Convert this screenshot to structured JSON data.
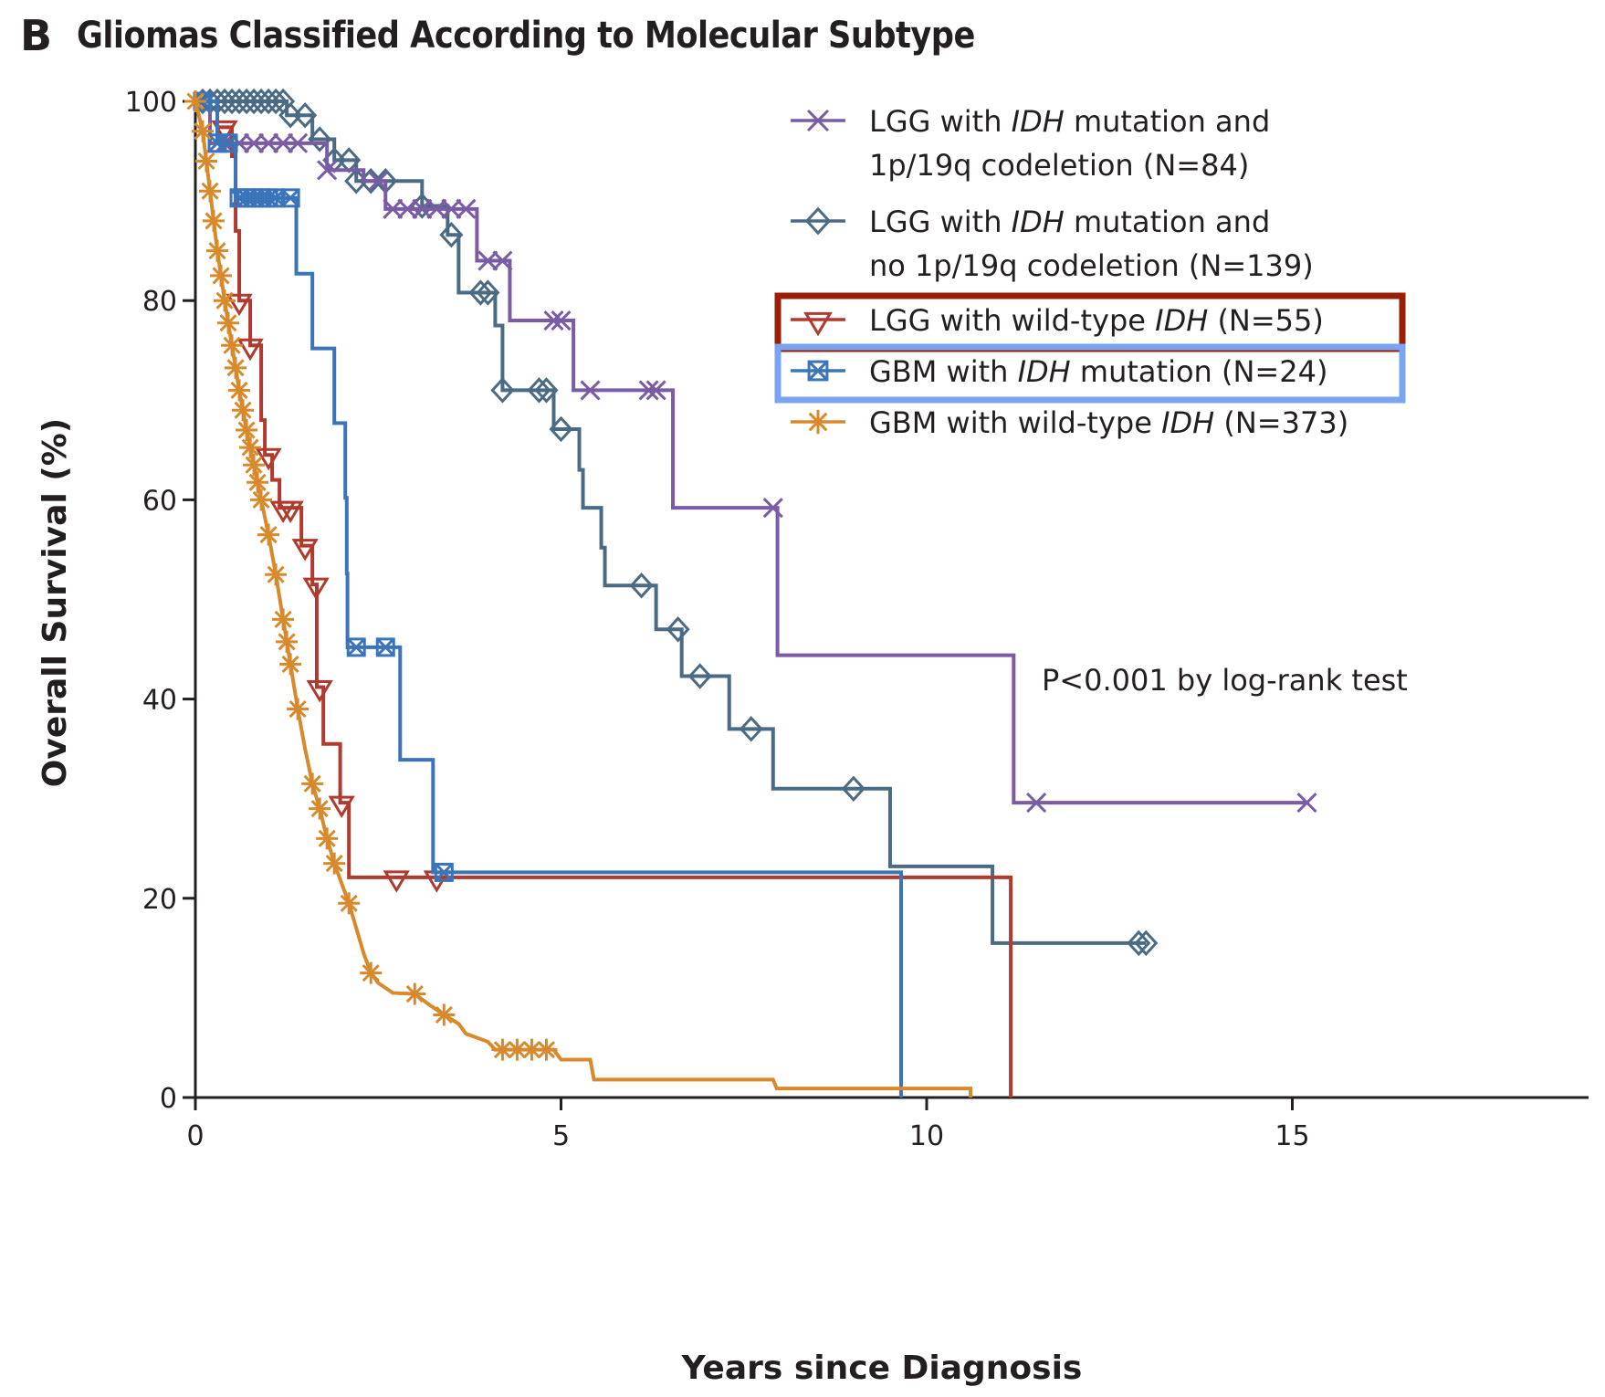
{
  "panel_letter": "B",
  "chart_data": {
    "type": "line",
    "subtype": "kaplan-meier step",
    "title": "Gliomas Classified According to Molecular Subtype",
    "xlabel": "Years since Diagnosis",
    "ylabel": "Overall Survival (%)",
    "xlim": [
      0,
      16.5
    ],
    "ylim": [
      0,
      100
    ],
    "xticks": [
      0,
      5,
      10,
      15
    ],
    "xtick_labels": [
      "0",
      "5",
      "10",
      "15"
    ],
    "yticks": [
      0,
      20,
      40,
      60,
      80,
      100
    ],
    "ytick_labels": [
      "0",
      "20",
      "40",
      "60",
      "80",
      "100"
    ],
    "grid": false,
    "legend_position": "top-right",
    "annotation": "P<0.001 by log-rank test",
    "series": [
      {
        "name": "LGG with IDH mutation and 1p/19q codeletion (N=84)",
        "legend_lines": [
          [
            "LGG with ",
            "IDH",
            " mutation and"
          ],
          [
            "1p/19q codeletion (N=84)"
          ]
        ],
        "color": "#7a5ba6",
        "marker": "x",
        "highlight": null,
        "steps": [
          [
            0,
            100
          ],
          [
            0.2,
            95.8
          ],
          [
            1.8,
            93.1
          ],
          [
            2.3,
            92.0
          ],
          [
            2.6,
            89.2
          ],
          [
            3.85,
            84.0
          ],
          [
            4.3,
            78.0
          ],
          [
            5.17,
            71.0
          ],
          [
            6.53,
            59.2
          ],
          [
            7.96,
            44.4
          ],
          [
            11.19,
            29.6
          ]
        ],
        "end_x": 15.2,
        "censor_x": [
          0.4,
          0.6,
          0.8,
          1.0,
          1.2,
          1.4,
          1.8,
          2.5,
          2.7,
          2.9,
          3.1,
          3.3,
          3.5,
          3.7,
          4.0,
          4.2,
          4.9,
          5.0,
          5.4,
          6.2,
          6.3,
          7.9,
          11.5,
          15.2
        ]
      },
      {
        "name": "LGG with IDH mutation and no 1p/19q codeletion (N=139)",
        "legend_lines": [
          [
            "LGG with ",
            "IDH",
            " mutation and"
          ],
          [
            "no 1p/19q codeletion (N=139)"
          ]
        ],
        "color": "#4b6b84",
        "marker": "diamond",
        "highlight": null,
        "steps": [
          [
            0,
            100
          ],
          [
            1.25,
            98.6
          ],
          [
            1.6,
            96.2
          ],
          [
            1.9,
            94.1
          ],
          [
            2.2,
            92.0
          ],
          [
            3.1,
            89.5
          ],
          [
            3.45,
            86.6
          ],
          [
            3.6,
            80.8
          ],
          [
            4.1,
            77.5
          ],
          [
            4.2,
            71.0
          ],
          [
            4.9,
            67.1
          ],
          [
            5.25,
            63.0
          ],
          [
            5.3,
            59.2
          ],
          [
            5.55,
            55.2
          ],
          [
            5.6,
            51.4
          ],
          [
            6.3,
            47.0
          ],
          [
            6.65,
            42.3
          ],
          [
            7.3,
            37.0
          ],
          [
            7.9,
            31.0
          ],
          [
            9.5,
            23.2
          ],
          [
            10.9,
            15.5
          ]
        ],
        "end_x": 13.0,
        "censor_x": [
          0.1,
          0.2,
          0.3,
          0.4,
          0.5,
          0.6,
          0.7,
          0.8,
          0.9,
          1.0,
          1.1,
          1.2,
          1.3,
          1.5,
          1.7,
          1.9,
          2.1,
          2.2,
          2.4,
          2.6,
          3.1,
          3.5,
          3.9,
          4.0,
          4.2,
          4.7,
          4.8,
          5.0,
          6.1,
          6.6,
          6.9,
          7.6,
          9.0,
          12.9,
          13.0
        ]
      },
      {
        "name": "LGG with wild-type IDH (N=55)",
        "legend_lines": [
          [
            "LGG with wild-type ",
            "IDH",
            " (N=55)"
          ]
        ],
        "color": "#b03a2e",
        "marker": "triangle-down",
        "highlight": "#9a1f08",
        "steps": [
          [
            0,
            100
          ],
          [
            0.3,
            97.4
          ],
          [
            0.5,
            94.5
          ],
          [
            0.55,
            87.0
          ],
          [
            0.6,
            80.0
          ],
          [
            0.75,
            75.5
          ],
          [
            0.9,
            68.0
          ],
          [
            0.95,
            64.5
          ],
          [
            1.05,
            62.0
          ],
          [
            1.15,
            59.2
          ],
          [
            1.45,
            55.4
          ],
          [
            1.6,
            51.5
          ],
          [
            1.66,
            41.2
          ],
          [
            1.75,
            35.5
          ],
          [
            1.98,
            29.6
          ],
          [
            2.1,
            22.1
          ],
          [
            11.15,
            0
          ]
        ],
        "end_x": 11.15,
        "censor_x": [
          0.4,
          0.6,
          0.75,
          1.0,
          1.2,
          1.3,
          1.5,
          1.65,
          1.7,
          2.0,
          2.75,
          3.3
        ]
      },
      {
        "name": "GBM with IDH mutation (N=24)",
        "legend_lines": [
          [
            "GBM with ",
            "IDH",
            " mutation (N=24)"
          ]
        ],
        "color": "#3b74b8",
        "marker": "square-x",
        "highlight": "#7aa3f0",
        "steps": [
          [
            0,
            100
          ],
          [
            0.3,
            95.8
          ],
          [
            0.55,
            90.3
          ],
          [
            1.38,
            82.7
          ],
          [
            1.6,
            75.2
          ],
          [
            1.9,
            67.7
          ],
          [
            2.05,
            60.2
          ],
          [
            2.07,
            52.6
          ],
          [
            2.08,
            45.2
          ],
          [
            2.8,
            33.9
          ],
          [
            3.25,
            22.6
          ],
          [
            9.65,
            0
          ]
        ],
        "end_x": 9.65,
        "censor_x": [
          0.1,
          0.3,
          0.45,
          0.6,
          0.7,
          0.8,
          0.9,
          1.0,
          1.1,
          1.3,
          2.2,
          2.6,
          3.4
        ]
      },
      {
        "name": "GBM with wild-type IDH (N=373)",
        "legend_lines": [
          [
            "GBM with wild-type ",
            "IDH",
            " (N=373)"
          ]
        ],
        "color": "#d8892b",
        "marker": "asterisk",
        "highlight": null,
        "curve": [
          [
            0,
            100
          ],
          [
            0.1,
            97
          ],
          [
            0.2,
            91
          ],
          [
            0.3,
            85
          ],
          [
            0.4,
            80
          ],
          [
            0.5,
            75.5
          ],
          [
            0.6,
            71
          ],
          [
            0.7,
            67
          ],
          [
            0.8,
            63.5
          ],
          [
            0.9,
            60
          ],
          [
            1.0,
            56.5
          ],
          [
            1.1,
            52.5
          ],
          [
            1.2,
            48
          ],
          [
            1.3,
            43.5
          ],
          [
            1.4,
            39
          ],
          [
            1.5,
            35
          ],
          [
            1.6,
            31.5
          ],
          [
            1.7,
            29
          ],
          [
            1.8,
            26
          ],
          [
            1.9,
            23.5
          ],
          [
            2.0,
            21.5
          ],
          [
            2.1,
            19.5
          ],
          [
            2.2,
            17
          ],
          [
            2.3,
            14.5
          ],
          [
            2.4,
            12.5
          ],
          [
            2.5,
            11.5
          ],
          [
            2.7,
            10.5
          ],
          [
            3.0,
            10.4
          ],
          [
            3.2,
            9.3
          ],
          [
            3.4,
            8.3
          ],
          [
            3.6,
            7.4
          ],
          [
            3.7,
            6.4
          ],
          [
            4.0,
            5.6
          ],
          [
            4.1,
            4.8
          ],
          [
            4.9,
            4.8
          ],
          [
            5.0,
            3.8
          ],
          [
            5.4,
            3.8
          ],
          [
            5.45,
            1.8
          ],
          [
            7.9,
            1.8
          ],
          [
            7.95,
            0.9
          ],
          [
            10.6,
            0.9
          ],
          [
            10.6,
            0
          ]
        ],
        "censor_x": [
          0.0,
          0.1,
          0.15,
          0.2,
          0.25,
          0.3,
          0.35,
          0.4,
          0.45,
          0.5,
          0.55,
          0.6,
          0.65,
          0.7,
          0.75,
          0.8,
          0.85,
          0.9,
          1.0,
          1.1,
          1.2,
          1.25,
          1.3,
          1.4,
          1.6,
          1.7,
          1.8,
          1.9,
          2.1,
          2.4,
          3.0,
          3.4,
          4.2,
          4.4,
          4.6,
          4.8
        ]
      }
    ]
  }
}
